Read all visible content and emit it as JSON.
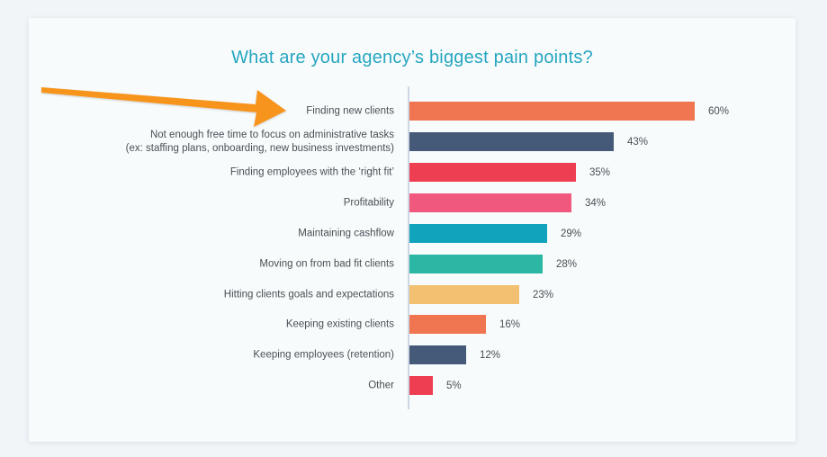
{
  "chart_data": {
    "type": "bar",
    "orientation": "horizontal",
    "title": "What are your agency’s biggest pain points?",
    "xlabel": "",
    "ylabel": "",
    "grid": false,
    "legend": null,
    "categories": [
      "Finding new clients",
      "Not enough free time to focus on administrative tasks (ex: staffing plans, onboarding, new business investments)",
      "Finding employees with the ‘right fit’",
      "Profitability",
      "Maintaining cashflow",
      "Moving on from bad fit clients",
      "Hitting clients goals and expectations",
      "Keeping existing clients",
      "Keeping employees (retention)",
      "Other"
    ],
    "values": [
      60,
      43,
      35,
      34,
      29,
      28,
      23,
      16,
      12,
      5
    ],
    "value_labels": [
      "60%",
      "43%",
      "35%",
      "34%",
      "29%",
      "28%",
      "23%",
      "16%",
      "12%",
      "5%"
    ],
    "colors": [
      "#ef7650",
      "#455a78",
      "#ee3f52",
      "#f0587e",
      "#12a3bc",
      "#2bb7a3",
      "#f2c071",
      "#ef7650",
      "#455a78",
      "#ee3f52"
    ],
    "annotations": [
      {
        "type": "arrow",
        "color": "#f7941d",
        "points_to": "Finding new clients"
      }
    ]
  },
  "rows": [
    {
      "label_line1": "Finding new clients",
      "label_line2": "",
      "value": "60%",
      "pct": 60,
      "color": "#ef7650"
    },
    {
      "label_line1": "Not enough free time to focus on administrative tasks",
      "label_line2": "(ex: staffing plans, onboarding, new business investments)",
      "value": "43%",
      "pct": 43,
      "color": "#455a78"
    },
    {
      "label_line1": "Finding employees with the ‘right fit’",
      "label_line2": "",
      "value": "35%",
      "pct": 35,
      "color": "#ee3f52"
    },
    {
      "label_line1": "Profitability",
      "label_line2": "",
      "value": "34%",
      "pct": 34,
      "color": "#f0587e"
    },
    {
      "label_line1": "Maintaining cashflow",
      "label_line2": "",
      "value": "29%",
      "pct": 29,
      "color": "#12a3bc"
    },
    {
      "label_line1": "Moving on from bad fit clients",
      "label_line2": "",
      "value": "28%",
      "pct": 28,
      "color": "#2bb7a3"
    },
    {
      "label_line1": "Hitting clients goals and expectations",
      "label_line2": "",
      "value": "23%",
      "pct": 23,
      "color": "#f2c071"
    },
    {
      "label_line1": "Keeping existing clients",
      "label_line2": "",
      "value": "16%",
      "pct": 16,
      "color": "#ef7650"
    },
    {
      "label_line1": "Keeping employees (retention)",
      "label_line2": "",
      "value": "12%",
      "pct": 12,
      "color": "#455a78"
    },
    {
      "label_line1": "Other",
      "label_line2": "",
      "value": "5%",
      "pct": 5,
      "color": "#ee3f52"
    }
  ],
  "colors": {
    "title": "#26a6c0",
    "arrow": "#f7941d",
    "axis": "#cdd6e4",
    "text": "#4a4f55",
    "card": "#f8fbfc",
    "page": "#f2f5f8"
  }
}
